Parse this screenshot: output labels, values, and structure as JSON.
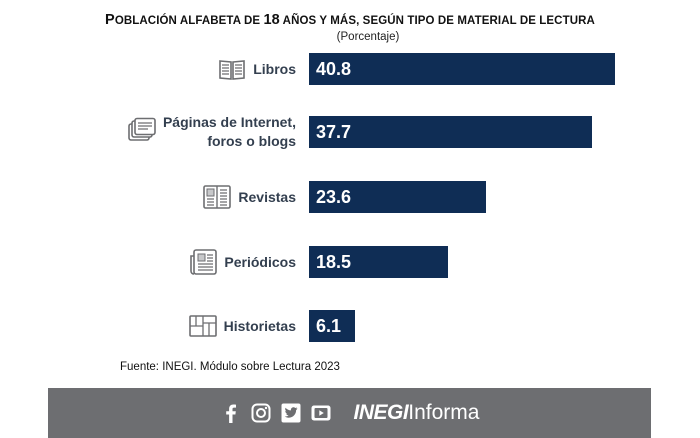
{
  "header": {
    "title_parts": [
      "P",
      "OBLACIÓN ALFABETA DE ",
      "18",
      " AÑOS Y MÁS, SEGÚN TIPO DE MATERIAL DE LECTURA"
    ],
    "subtitle": "(Porcentaje)"
  },
  "chart_data": {
    "type": "bar",
    "orientation": "horizontal",
    "title": "Población alfabeta de 18 años y más, según tipo de material de lectura",
    "subtitle": "(Porcentaje)",
    "categories": [
      "Libros",
      "Páginas de Internet,\nforos o blogs",
      "Revistas",
      "Periódicos",
      "Historietas"
    ],
    "values": [
      40.8,
      37.7,
      23.6,
      18.5,
      6.1
    ],
    "labels": [
      "40.8",
      "37.7",
      "23.6",
      "18.5",
      "6.1"
    ],
    "icons": [
      "book-icon",
      "web-pages-icon",
      "magazine-icon",
      "newspaper-icon",
      "comic-icon"
    ],
    "xlim": [
      0,
      45
    ],
    "grid": false,
    "legend": "none",
    "bar_color": "#0f2d55"
  },
  "source": "Fuente: INEGI. Módulo sobre Lectura 2023",
  "footer": {
    "background": "#6d6e71",
    "social_icons": [
      "facebook-icon",
      "instagram-icon",
      "twitter-icon",
      "youtube-icon"
    ],
    "brand_bold": "INEGI",
    "brand_light": "Informa"
  }
}
